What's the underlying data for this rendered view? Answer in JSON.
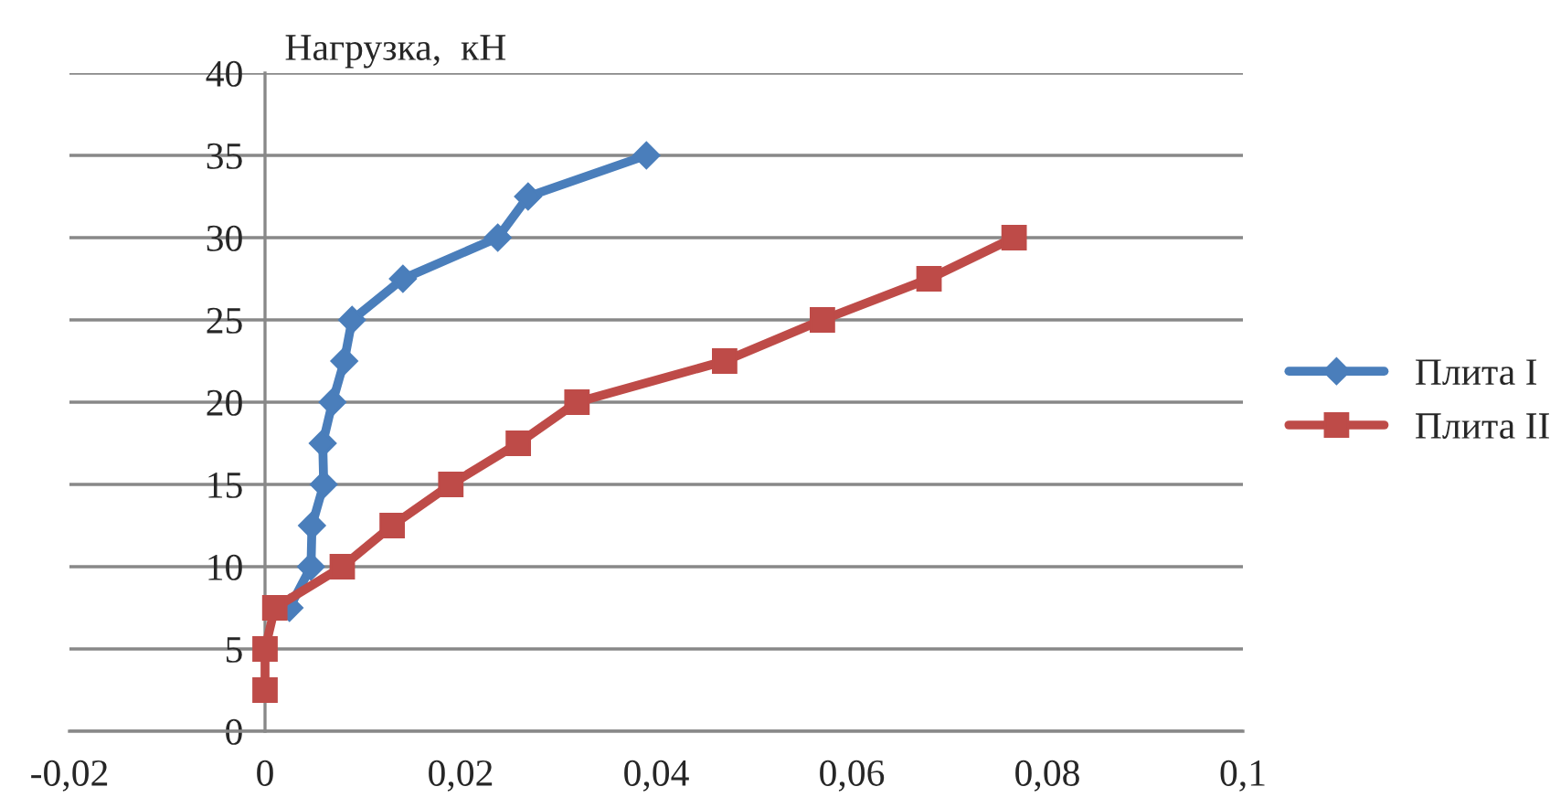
{
  "chart_data": {
    "type": "line",
    "ylabel": "Нагрузка,  кН",
    "series": [
      {
        "name": "Плита I",
        "color": "#4a7ebb",
        "marker": "diamond",
        "x": [
          0.0025,
          0.0047,
          0.0048,
          0.006,
          0.0059,
          0.0069,
          0.0081,
          0.0089,
          0.0141,
          0.0238,
          0.0269,
          0.039
        ],
        "values": [
          7.5,
          10,
          12.5,
          15,
          17.5,
          20,
          22.5,
          25,
          27.5,
          30,
          32.5,
          35
        ]
      },
      {
        "name": "Плита II",
        "color": "#be4b48",
        "marker": "square",
        "x": [
          0,
          0,
          0.001,
          0.0079,
          0.013,
          0.019,
          0.0259,
          0.0319,
          0.047,
          0.057,
          0.0679,
          0.0766
        ],
        "values": [
          2.5,
          5,
          7.5,
          10,
          12.5,
          15,
          17.5,
          20,
          22.5,
          25,
          27.5,
          30
        ]
      }
    ],
    "xlim": [
      -0.02,
      0.1
    ],
    "xticks": [
      {
        "value": -0.02,
        "label": "-0,02"
      },
      0,
      {
        "value": 0.02,
        "label": "0,02"
      },
      {
        "value": 0.04,
        "label": "0,04"
      },
      {
        "value": 0.06,
        "label": "0,06"
      },
      {
        "value": 0.08,
        "label": "0,08"
      },
      {
        "value": 0.1,
        "label": "0,1"
      }
    ],
    "ylim": [
      0,
      40
    ],
    "yticks": [
      0,
      5,
      10,
      15,
      20,
      25,
      30,
      35,
      40
    ],
    "grid": "y",
    "legend": "right",
    "line_style": "solid"
  }
}
